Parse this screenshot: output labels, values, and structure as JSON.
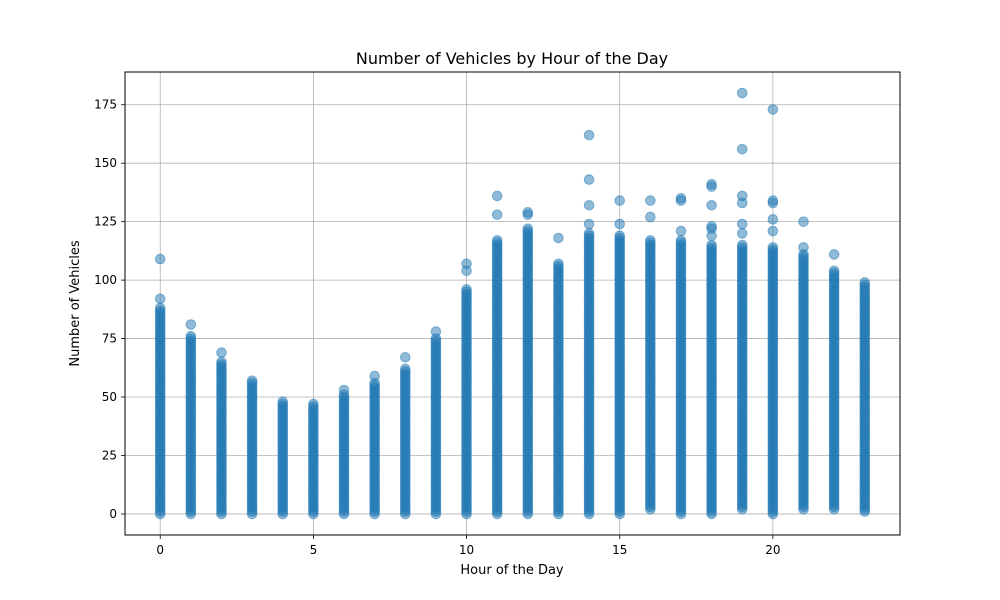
{
  "chart_data": {
    "type": "scatter",
    "title": "Number of Vehicles by Hour of the Day",
    "xlabel": "Hour of the Day",
    "ylabel": "Number of Vehicles",
    "xlim": [
      -1.15,
      24.15
    ],
    "ylim": [
      -9,
      189
    ],
    "xticks": [
      0,
      5,
      10,
      15,
      20
    ],
    "yticks": [
      0,
      25,
      50,
      75,
      100,
      125,
      150,
      175
    ],
    "grid": true,
    "marker_color": "#1f77b4",
    "marker_alpha": 0.5,
    "series": [
      {
        "hours": [
          0,
          1,
          2,
          3,
          4,
          5,
          6,
          7,
          8,
          9,
          10,
          11,
          12,
          13,
          14,
          15,
          16,
          17,
          18,
          19,
          20,
          21,
          22,
          23
        ],
        "band_min": [
          0,
          0,
          0,
          0,
          0,
          0,
          0,
          0,
          0,
          0,
          0,
          0,
          0,
          0,
          0,
          0,
          2,
          0,
          0,
          2,
          0,
          2,
          2,
          1
        ],
        "band_max": [
          88,
          76,
          65,
          56,
          48,
          47,
          51,
          56,
          62,
          75,
          96,
          117,
          122,
          107,
          120,
          119,
          117,
          117,
          115,
          115,
          114,
          111,
          103,
          99
        ],
        "outliers": [
          [
            0,
            92
          ],
          [
            0,
            109
          ],
          [
            1,
            81
          ],
          [
            2,
            69
          ],
          [
            3,
            57
          ],
          [
            6,
            53
          ],
          [
            7,
            59
          ],
          [
            8,
            67
          ],
          [
            9,
            78
          ],
          [
            10,
            104
          ],
          [
            10,
            107
          ],
          [
            11,
            128
          ],
          [
            11,
            136
          ],
          [
            12,
            128
          ],
          [
            12,
            129
          ],
          [
            13,
            118
          ],
          [
            14,
            124
          ],
          [
            14,
            132
          ],
          [
            14,
            143
          ],
          [
            14,
            162
          ],
          [
            15,
            124
          ],
          [
            15,
            134
          ],
          [
            16,
            127
          ],
          [
            16,
            134
          ],
          [
            17,
            121
          ],
          [
            17,
            134
          ],
          [
            17,
            135
          ],
          [
            18,
            119
          ],
          [
            18,
            122
          ],
          [
            18,
            123
          ],
          [
            18,
            132
          ],
          [
            18,
            140
          ],
          [
            18,
            141
          ],
          [
            19,
            120
          ],
          [
            19,
            124
          ],
          [
            19,
            133
          ],
          [
            19,
            136
          ],
          [
            19,
            156
          ],
          [
            19,
            180
          ],
          [
            20,
            121
          ],
          [
            20,
            126
          ],
          [
            20,
            133
          ],
          [
            20,
            134
          ],
          [
            20,
            173
          ],
          [
            21,
            114
          ],
          [
            21,
            125
          ],
          [
            22,
            104
          ],
          [
            22,
            111
          ]
        ]
      }
    ]
  }
}
